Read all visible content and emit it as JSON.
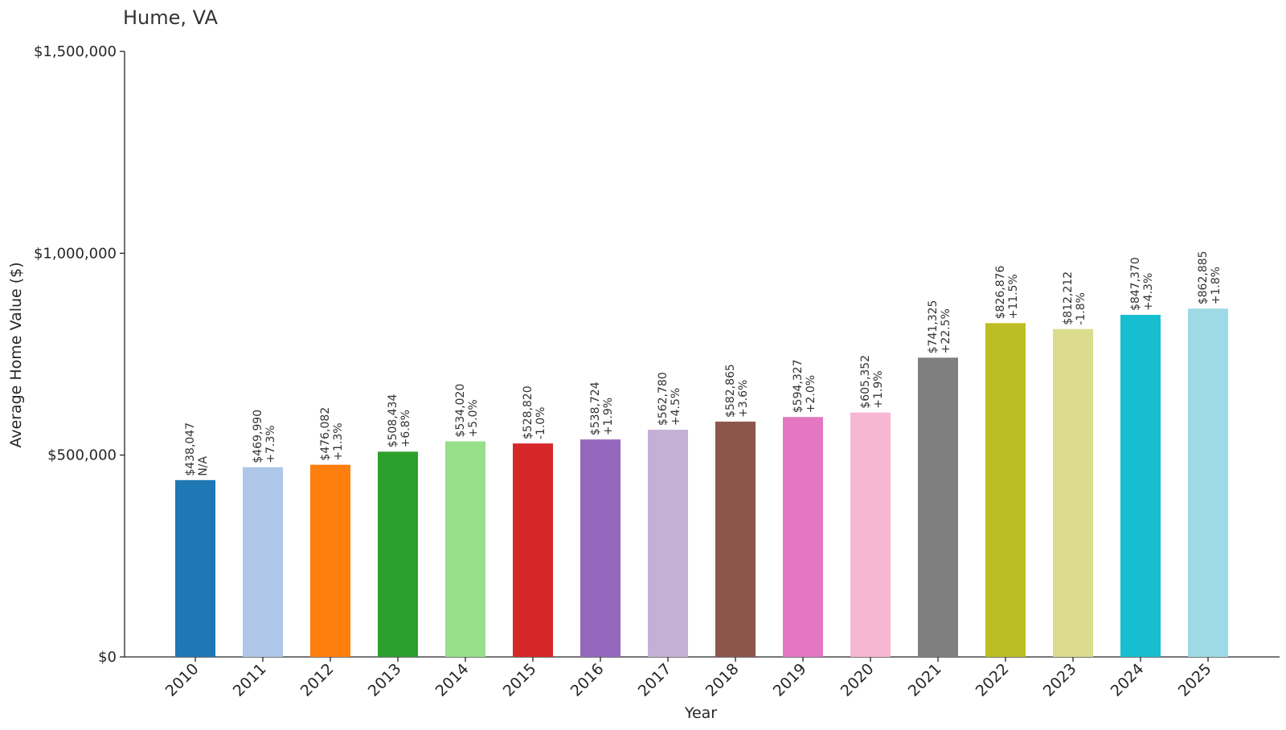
{
  "chart_data": {
    "type": "bar",
    "title": "Hume, VA",
    "xlabel": "Year",
    "ylabel": "Average Home Value ($)",
    "ylim": [
      0,
      1500000
    ],
    "yticks": [
      0,
      500000,
      1000000,
      1500000
    ],
    "ytick_labels": [
      "$0",
      "$500,000",
      "$1,000,000",
      "$1,500,000"
    ],
    "grid": false,
    "categories": [
      "2010",
      "2011",
      "2012",
      "2013",
      "2014",
      "2015",
      "2016",
      "2017",
      "2018",
      "2019",
      "2020",
      "2021",
      "2022",
      "2023",
      "2024",
      "2025"
    ],
    "values": [
      438047,
      469990,
      476082,
      508434,
      534020,
      528820,
      538724,
      562780,
      582865,
      594327,
      605352,
      741325,
      826876,
      812212,
      847370,
      862885
    ],
    "value_labels": [
      "$438,047",
      "$469,990",
      "$476,082",
      "$508,434",
      "$534,020",
      "$528,820",
      "$538,724",
      "$562,780",
      "$582,865",
      "$594,327",
      "$605,352",
      "$741,325",
      "$826,876",
      "$812,212",
      "$847,370",
      "$862,885"
    ],
    "change_labels": [
      "N/A",
      "+7.3%",
      "+1.3%",
      "+6.8%",
      "+5.0%",
      "-1.0%",
      "+1.9%",
      "+4.5%",
      "+3.6%",
      "+2.0%",
      "+1.9%",
      "+22.5%",
      "+11.5%",
      "-1.8%",
      "+4.3%",
      "+1.8%"
    ],
    "colors": [
      "#1f77b4",
      "#aec7e8",
      "#ff7f0e",
      "#2ca02c",
      "#98df8a",
      "#d62728",
      "#9467bd",
      "#c5b0d5",
      "#8c564b",
      "#e377c2",
      "#f7b6d2",
      "#7f7f7f",
      "#bcbd22",
      "#dbdb8d",
      "#17becf",
      "#9edae5"
    ]
  }
}
